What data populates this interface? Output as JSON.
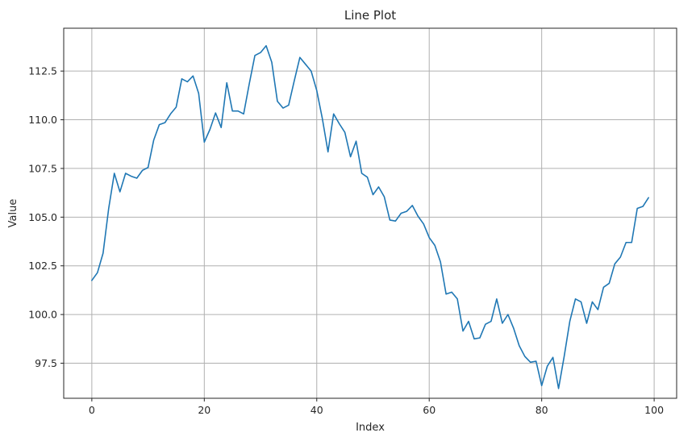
{
  "chart_data": {
    "type": "line",
    "title": "Line Plot",
    "xlabel": "Index",
    "ylabel": "Value",
    "xlim": [
      -5,
      104
    ],
    "ylim": [
      95.7,
      114.7
    ],
    "xticks": [
      0,
      20,
      40,
      60,
      80,
      100
    ],
    "xtick_labels": [
      "0",
      "20",
      "40",
      "60",
      "80",
      "100"
    ],
    "yticks": [
      97.5,
      100.0,
      102.5,
      105.0,
      107.5,
      110.0,
      112.5
    ],
    "ytick_labels": [
      "97.5",
      "100.0",
      "102.5",
      "105.0",
      "107.5",
      "110.0",
      "112.5"
    ],
    "grid": true,
    "legend": "none",
    "series_color": "#1f77b4",
    "x": [
      0,
      1,
      2,
      3,
      4,
      5,
      6,
      7,
      8,
      9,
      10,
      11,
      12,
      13,
      14,
      15,
      16,
      17,
      18,
      19,
      20,
      21,
      22,
      23,
      24,
      25,
      26,
      27,
      28,
      29,
      30,
      31,
      32,
      33,
      34,
      35,
      36,
      37,
      38,
      39,
      40,
      41,
      42,
      43,
      44,
      45,
      46,
      47,
      48,
      49,
      50,
      51,
      52,
      53,
      54,
      55,
      56,
      57,
      58,
      59,
      60,
      61,
      62,
      63,
      64,
      65,
      66,
      67,
      68,
      69,
      70,
      71,
      72,
      73,
      74,
      75,
      76,
      77,
      78,
      79,
      80,
      81,
      82,
      83,
      84,
      85,
      86,
      87,
      88,
      89,
      90,
      91,
      92,
      93,
      94,
      95,
      96,
      97,
      98,
      99
    ],
    "y": [
      101.75,
      102.15,
      103.15,
      105.45,
      107.25,
      106.3,
      107.25,
      107.1,
      107.0,
      107.4,
      107.55,
      108.95,
      109.75,
      109.85,
      110.3,
      110.65,
      112.1,
      111.95,
      112.25,
      111.35,
      108.85,
      109.5,
      110.35,
      109.6,
      111.9,
      110.45,
      110.45,
      110.3,
      111.85,
      113.3,
      113.45,
      113.8,
      112.95,
      110.95,
      110.6,
      110.75,
      112.0,
      113.2,
      112.85,
      112.5,
      111.5,
      110.05,
      108.35,
      110.3,
      109.8,
      109.35,
      108.1,
      108.9,
      107.25,
      107.05,
      106.15,
      106.55,
      106.05,
      104.85,
      104.8,
      105.2,
      105.3,
      105.6,
      105.05,
      104.65,
      103.95,
      103.55,
      102.7,
      101.05,
      101.15,
      100.8,
      99.15,
      99.65,
      98.75,
      98.8,
      99.5,
      99.65,
      100.8,
      99.55,
      100.0,
      99.3,
      98.4,
      97.85,
      97.55,
      97.6,
      96.35,
      97.35,
      97.8,
      96.2,
      97.85,
      99.65,
      100.8,
      100.65,
      99.55,
      100.65,
      100.25,
      101.4,
      101.6,
      102.6,
      102.95,
      103.7,
      103.7,
      105.45,
      105.55,
      106.0
    ]
  }
}
